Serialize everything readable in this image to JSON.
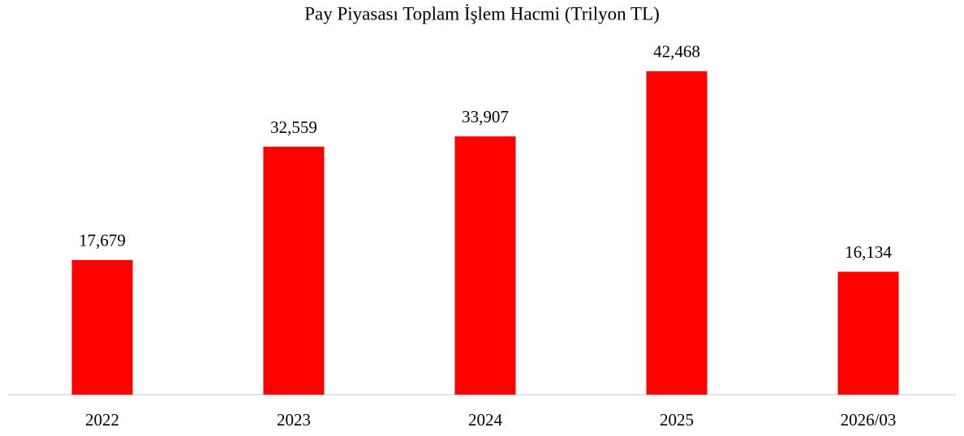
{
  "chart_data": {
    "type": "bar",
    "title": "Pay Piyasası Toplam İşlem Hacmi (Trilyon TL)",
    "categories": [
      "2022",
      "2023",
      "2024",
      "2025",
      "2026/03"
    ],
    "values": [
      17.679,
      32.559,
      33.907,
      42.468,
      16.134
    ],
    "value_labels": [
      "17,679",
      "32,559",
      "33,907",
      "42,468",
      "16,134"
    ],
    "color": "#ff0000",
    "ylim": [
      0,
      45
    ]
  }
}
